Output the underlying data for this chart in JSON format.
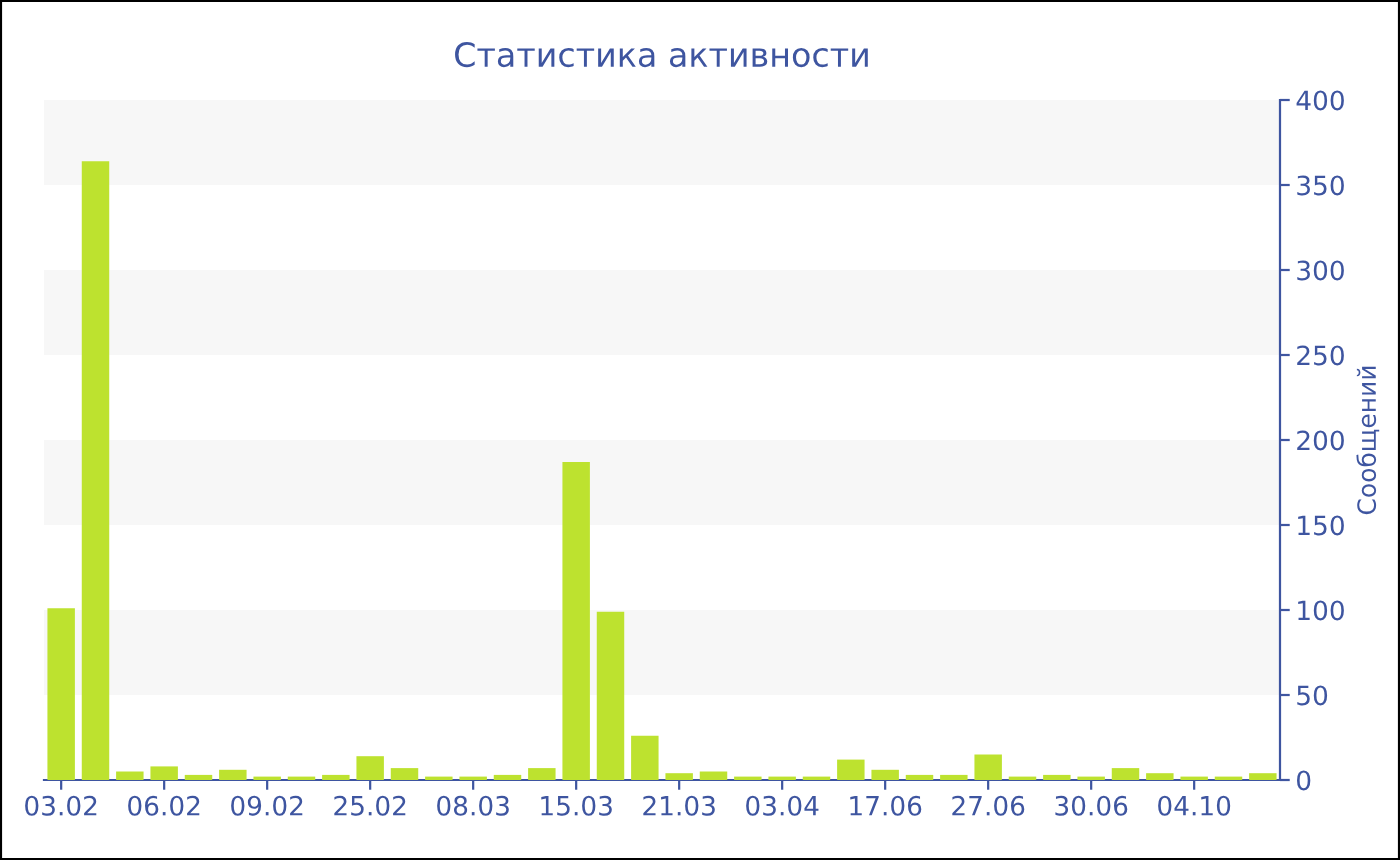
{
  "chart_data": {
    "type": "bar",
    "title": "Статистика активности",
    "ylabel": "Сообщений",
    "categories": [
      "03.02",
      null,
      null,
      "06.02",
      null,
      null,
      "09.02",
      null,
      null,
      "25.02",
      null,
      null,
      "08.03",
      null,
      null,
      "15.03",
      null,
      null,
      "21.03",
      null,
      null,
      "03.04",
      null,
      null,
      "17.06",
      null,
      null,
      "27.06",
      null,
      null,
      "30.06",
      null,
      null,
      "04.10",
      null,
      null
    ],
    "values": [
      101,
      364,
      5,
      8,
      3,
      6,
      2,
      2,
      3,
      14,
      7,
      2,
      2,
      3,
      7,
      187,
      99,
      26,
      4,
      5,
      2,
      2,
      2,
      12,
      6,
      3,
      3,
      15,
      2,
      3,
      2,
      7,
      4,
      2,
      2,
      4
    ],
    "color": "#bde22f",
    "ylim": [
      0,
      400
    ],
    "yticks": [
      0,
      50,
      100,
      150,
      200,
      250,
      300,
      350,
      400
    ],
    "legend": false
  }
}
